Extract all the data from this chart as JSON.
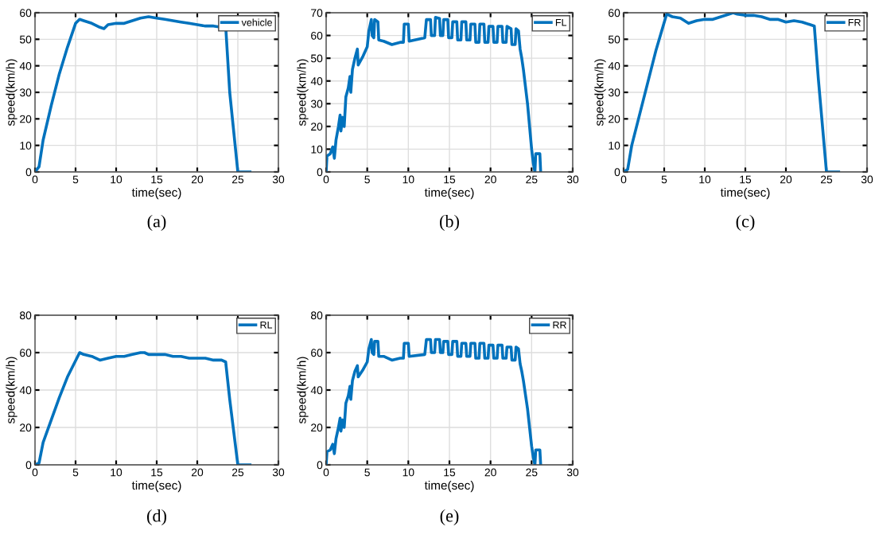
{
  "chart_data": [
    {
      "type": "line",
      "xlabel": "time(sec)",
      "ylabel": "speed(km/h)",
      "xlim": [
        0,
        30
      ],
      "xticks": [
        0,
        5,
        10,
        15,
        20,
        25,
        30
      ],
      "ylim": [
        0,
        60
      ],
      "yticks": [
        0,
        10,
        20,
        30,
        40,
        50,
        60
      ],
      "grid": true,
      "legend": "top right",
      "annotations": [
        "(a)"
      ],
      "series": [
        {
          "name": "vehicle",
          "color": "#0072bd",
          "x": [
            0,
            0.5,
            1,
            2,
            3,
            4,
            5,
            5.5,
            6,
            7,
            8,
            8.5,
            9,
            10,
            11,
            12,
            13,
            14,
            15,
            16,
            17,
            18,
            19,
            20,
            21,
            22,
            23,
            23.5,
            24,
            25,
            26.5
          ],
          "values": [
            0,
            2,
            12,
            25,
            37,
            47,
            56,
            57.5,
            57,
            56,
            54.5,
            54,
            55.5,
            56,
            56,
            57,
            58,
            58.5,
            58,
            57.5,
            57,
            56.5,
            56,
            55.5,
            55,
            55,
            54.5,
            55,
            30,
            0,
            0
          ]
        }
      ]
    },
    {
      "type": "line",
      "xlabel": "time(sec)",
      "ylabel": "speed(km/h)",
      "xlim": [
        0,
        30
      ],
      "xticks": [
        0,
        5,
        10,
        15,
        20,
        25,
        30
      ],
      "ylim": [
        0,
        70
      ],
      "yticks": [
        0,
        10,
        20,
        30,
        40,
        50,
        60,
        70
      ],
      "grid": true,
      "legend": "top right",
      "annotations": [
        "(b)"
      ],
      "series": [
        {
          "name": "FL",
          "color": "#0072bd",
          "x": [
            0,
            0.1,
            0.5,
            0.8,
            1,
            1.2,
            1.5,
            1.7,
            1.8,
            2,
            2.2,
            2.4,
            2.7,
            2.9,
            3,
            3.2,
            3.5,
            3.8,
            3.9,
            4.5,
            5,
            5.2,
            5.5,
            5.6,
            5.8,
            5.9,
            6.3,
            6.4,
            7,
            8,
            9,
            9.4,
            9.5,
            10,
            10.1,
            12,
            12.2,
            12.7,
            12.8,
            13.2,
            13.3,
            13.8,
            13.9,
            14.2,
            14.3,
            14.8,
            14.9,
            15.3,
            15.4,
            15.9,
            16,
            16.4,
            16.5,
            17,
            17.1,
            17.5,
            17.6,
            18.1,
            18.2,
            18.6,
            18.7,
            19.2,
            19.3,
            19.7,
            19.8,
            20.3,
            20.4,
            20.8,
            20.9,
            21.4,
            21.5,
            21.9,
            22,
            22.5,
            22.6,
            23,
            23.1,
            23.4,
            23.6,
            23.8,
            24,
            24.5,
            25,
            25.2,
            25.4,
            25.5,
            26,
            26.1
          ],
          "values": [
            0,
            7,
            8,
            11,
            6,
            14,
            20,
            25,
            18,
            24,
            20,
            33,
            37,
            42,
            35,
            45,
            50,
            54,
            47,
            51,
            55,
            62,
            67,
            60,
            59,
            67,
            66,
            58,
            57.5,
            56,
            57,
            57,
            65,
            65,
            57.5,
            59,
            67,
            67,
            60,
            60,
            68,
            67.5,
            60,
            60,
            67,
            67,
            59,
            59,
            66,
            66,
            58,
            58,
            66,
            66,
            58,
            58,
            65,
            65,
            57,
            57,
            65,
            65,
            57,
            57,
            64,
            64,
            57,
            57,
            64,
            64,
            57,
            57,
            64,
            63,
            56,
            56,
            63,
            62,
            54,
            50,
            45,
            30,
            10,
            4,
            0,
            8,
            8,
            0
          ]
        }
      ]
    },
    {
      "type": "line",
      "xlabel": "time(sec)",
      "ylabel": "speed(km/h)",
      "xlim": [
        0,
        30
      ],
      "xticks": [
        0,
        5,
        10,
        15,
        20,
        25,
        30
      ],
      "ylim": [
        0,
        60
      ],
      "yticks": [
        0,
        10,
        20,
        30,
        40,
        50,
        60
      ],
      "grid": true,
      "legend": "top right",
      "annotations": [
        "(c)"
      ],
      "series": [
        {
          "name": "FR",
          "color": "#0072bd",
          "x": [
            0,
            0.5,
            1,
            2,
            3,
            4,
            5.3,
            6,
            7,
            8,
            9,
            10,
            11,
            12,
            13,
            13.5,
            14,
            15,
            16,
            17,
            18,
            19,
            20,
            21,
            22,
            23,
            23.5,
            24,
            25,
            26.5
          ],
          "values": [
            0,
            1,
            10,
            22,
            34,
            46,
            59.5,
            58.5,
            58,
            56,
            57,
            57.5,
            57.5,
            58.5,
            59.5,
            60,
            59.5,
            59,
            59,
            58.5,
            57.5,
            57.5,
            56.5,
            57,
            56.5,
            55.5,
            55,
            35,
            0,
            0
          ]
        }
      ]
    },
    {
      "type": "line",
      "xlabel": "time(sec)",
      "ylabel": "speed(km/h)",
      "xlim": [
        0,
        30
      ],
      "xticks": [
        0,
        5,
        10,
        15,
        20,
        25,
        30
      ],
      "ylim": [
        0,
        80
      ],
      "yticks": [
        0,
        20,
        40,
        60,
        80
      ],
      "grid": true,
      "legend": "top right",
      "annotations": [
        "(d)"
      ],
      "series": [
        {
          "name": "RL",
          "color": "#0072bd",
          "x": [
            0,
            0.5,
            1,
            2,
            3,
            4,
            5.5,
            6,
            7,
            8,
            9,
            10,
            11,
            12,
            13,
            13.5,
            14,
            15,
            16,
            17,
            18,
            19,
            20,
            21,
            22,
            23,
            23.5,
            24,
            25,
            26.5
          ],
          "values": [
            0,
            1,
            12,
            24,
            36,
            47,
            60,
            59,
            58,
            56,
            57,
            58,
            58,
            59,
            60,
            60,
            59,
            59,
            59,
            58,
            58,
            57,
            57,
            57,
            56,
            56,
            55,
            35,
            0,
            0
          ]
        }
      ]
    },
    {
      "type": "line",
      "xlabel": "time(sec)",
      "ylabel": "speed(km/h)",
      "xlim": [
        0,
        30
      ],
      "xticks": [
        0,
        5,
        10,
        15,
        20,
        25,
        30
      ],
      "ylim": [
        0,
        80
      ],
      "yticks": [
        0,
        20,
        40,
        60,
        80
      ],
      "grid": true,
      "legend": "top right",
      "annotations": [
        "(e)"
      ],
      "series": [
        {
          "name": "RR",
          "color": "#0072bd",
          "x": [
            0,
            0.1,
            0.5,
            0.8,
            1,
            1.2,
            1.5,
            1.7,
            1.8,
            2,
            2.2,
            2.4,
            2.7,
            2.9,
            3,
            3.2,
            3.5,
            3.8,
            3.9,
            4.5,
            5,
            5.2,
            5.5,
            5.6,
            5.8,
            5.9,
            6.3,
            6.4,
            7,
            8,
            9,
            9.4,
            9.5,
            10,
            10.1,
            12,
            12.2,
            12.7,
            12.8,
            13.2,
            13.3,
            13.8,
            13.9,
            14.2,
            14.3,
            14.8,
            14.9,
            15.3,
            15.4,
            15.9,
            16,
            16.4,
            16.5,
            17,
            17.1,
            17.5,
            17.6,
            18.1,
            18.2,
            18.6,
            18.7,
            19.2,
            19.3,
            19.7,
            19.8,
            20.3,
            20.4,
            20.8,
            20.9,
            21.4,
            21.5,
            21.9,
            22,
            22.5,
            22.6,
            23,
            23.1,
            23.4,
            23.6,
            23.8,
            24,
            24.5,
            25,
            25.2,
            25.4,
            25.5,
            26,
            26.1
          ],
          "values": [
            0,
            7,
            8,
            11,
            6,
            14,
            20,
            25,
            18,
            24,
            20,
            33,
            37,
            42,
            35,
            45,
            50,
            53,
            47,
            51,
            55,
            62,
            67,
            60,
            59,
            66,
            66,
            58,
            58,
            56,
            57,
            57,
            65,
            65,
            58,
            59,
            67,
            67,
            60,
            60,
            67,
            67,
            60,
            60,
            66,
            66,
            59,
            59,
            66,
            66,
            58,
            58,
            65,
            65,
            58,
            58,
            65,
            65,
            57,
            57,
            65,
            65,
            57,
            57,
            64,
            64,
            57,
            57,
            64,
            64,
            57,
            57,
            63,
            63,
            56,
            56,
            63,
            62,
            54,
            50,
            45,
            30,
            10,
            4,
            0,
            8,
            8,
            0
          ]
        }
      ]
    }
  ]
}
